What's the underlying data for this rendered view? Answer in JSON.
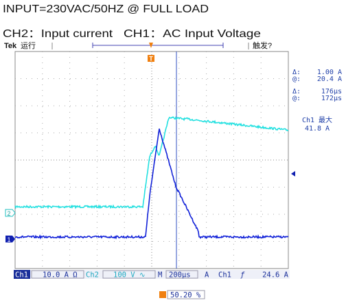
{
  "caption": "INPUT=230VAC/50HZ @ FULL LOAD",
  "channels_caption": {
    "ch2": "CH2：Input current",
    "ch1": "CH1：AC Input Voltage"
  },
  "scope": {
    "brand": "Tek",
    "state": "运行",
    "trigger_state": "触发?",
    "trigger_marker": "T",
    "channel_markers": {
      "ch2": "2",
      "ch1": "1"
    },
    "readouts": [
      {
        "symbol": "Δ:",
        "value": "1.00 A"
      },
      {
        "symbol": "@:",
        "value": "20.4 A"
      },
      {
        "symbol": "Δ:",
        "value": "176µs"
      },
      {
        "symbol": "@:",
        "value": "172µs"
      }
    ],
    "measurement": {
      "label": "Ch1 最大",
      "value": "41.8 A"
    },
    "status_bar": {
      "ch1": "Ch1",
      "ch1_scale": "10.0 A Ω",
      "ch2": "Ch2",
      "ch2_scale": "100 V ∿",
      "m": "M",
      "timebase": "200µs",
      "a": "A",
      "trig_source": "Ch1",
      "trig_slope": "ƒ",
      "trig_level": "24.6 A"
    },
    "trigger_position": "50.20 %"
  }
}
